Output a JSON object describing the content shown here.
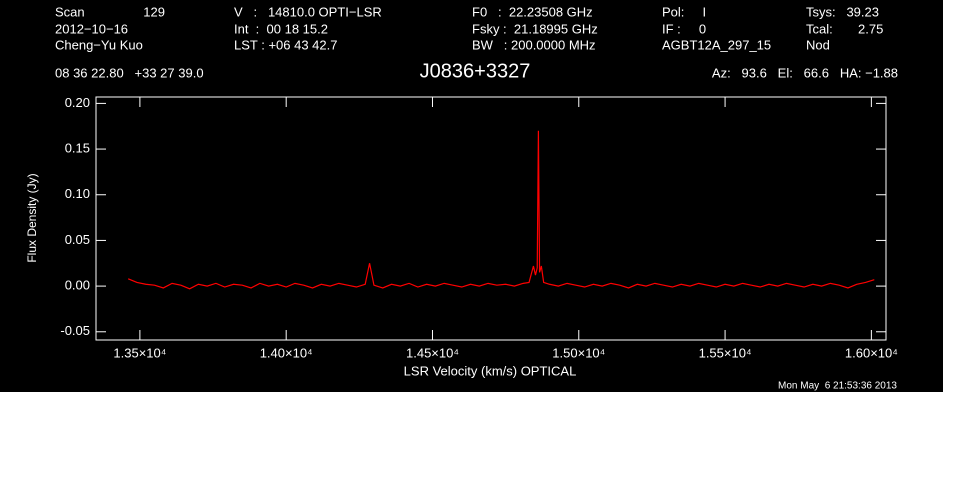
{
  "chart_data": {
    "type": "line",
    "title": "J0836+3327",
    "header": [
      "Scan",
      "129",
      "V   :   14810.0 OPTI−LSR",
      "F0   :  22.23508 GHz",
      "Pol:     I",
      "Tsys:   39.23",
      "2012−10−16",
      "Int  :  00 18 15.2",
      "Fsky :  21.18995 GHz",
      "IF :     0",
      "Tcal:       2.75",
      "Cheng−Yu Kuo",
      "LST : +06 43 42.7",
      "BW   : 200.0000 MHz",
      "AGBT12A_297_15",
      "Nod",
      "08 36 22.80   +33 27 39.0",
      "Az:   93.6   El:   66.6   HA: −1.88"
    ],
    "footer": "Mon May  6 21:53:36 2013",
    "xlabel": "LSR Velocity (km/s) OPTICAL",
    "ylabel": "Flux Density (Jy)",
    "xlim": [
      13350,
      16050
    ],
    "ylim": [
      -0.059,
      0.207
    ],
    "xticks": [
      {
        "value": 13500,
        "label": "1.35×10⁴"
      },
      {
        "value": 14000,
        "label": "1.40×10⁴"
      },
      {
        "value": 14500,
        "label": "1.45×10⁴"
      },
      {
        "value": 15000,
        "label": "1.50×10⁴"
      },
      {
        "value": 15500,
        "label": "1.55×10⁴"
      },
      {
        "value": 16000,
        "label": "1.60×10⁴"
      }
    ],
    "yticks": [
      -0.05,
      {
        "value": 0,
        "label": "0.00"
      },
      0.05,
      {
        "value": 0.1,
        "label": "0.10"
      },
      0.15,
      {
        "value": 0.2,
        "label": "0.20"
      }
    ],
    "series": [
      {
        "color": "#ff0000",
        "x": [
          13460,
          13490,
          13520,
          13550,
          13580,
          13610,
          13640,
          13670,
          13700,
          13730,
          13760,
          13790,
          13820,
          13850,
          13880,
          13910,
          13940,
          13970,
          14000,
          14030,
          14060,
          14090,
          14120,
          14150,
          14180,
          14210,
          14240,
          14270,
          14285,
          14300,
          14330,
          14360,
          14390,
          14420,
          14450,
          14480,
          14510,
          14540,
          14570,
          14600,
          14630,
          14660,
          14690,
          14720,
          14750,
          14780,
          14810,
          14830,
          14845,
          14852,
          14858,
          14862,
          14866,
          14872,
          14880,
          14900,
          14930,
          14960,
          14990,
          15020,
          15050,
          15080,
          15110,
          15140,
          15170,
          15200,
          15230,
          15260,
          15290,
          15320,
          15350,
          15380,
          15410,
          15440,
          15470,
          15500,
          15530,
          15560,
          15590,
          15620,
          15650,
          15680,
          15710,
          15740,
          15770,
          15800,
          15830,
          15860,
          15890,
          15920,
          15950,
          15980,
          16010
        ],
        "values": [
          0.008,
          0.004,
          0.002,
          0.001,
          -0.002,
          0.003,
          0.001,
          -0.003,
          0.002,
          0.0,
          0.003,
          -0.001,
          0.002,
          0.001,
          -0.002,
          0.003,
          0.0,
          0.002,
          -0.001,
          0.003,
          0.001,
          -0.002,
          0.002,
          0.0,
          0.003,
          0.001,
          -0.001,
          0.002,
          0.025,
          0.001,
          -0.002,
          0.002,
          0.0,
          0.003,
          -0.001,
          0.002,
          0.0,
          0.003,
          0.001,
          -0.001,
          0.002,
          0.0,
          0.003,
          0.001,
          0.002,
          0.0,
          0.003,
          0.004,
          0.022,
          0.012,
          0.02,
          0.17,
          0.015,
          0.022,
          0.004,
          0.002,
          0.0,
          0.003,
          0.001,
          -0.001,
          0.002,
          0.0,
          0.003,
          0.001,
          -0.002,
          0.002,
          0.0,
          0.003,
          0.001,
          -0.001,
          0.002,
          0.0,
          0.003,
          0.001,
          -0.001,
          0.002,
          0.0,
          0.003,
          0.001,
          -0.001,
          0.002,
          0.0,
          0.003,
          0.001,
          -0.001,
          0.002,
          0.0,
          0.003,
          0.001,
          -0.002,
          0.002,
          0.004,
          0.007
        ]
      }
    ]
  }
}
